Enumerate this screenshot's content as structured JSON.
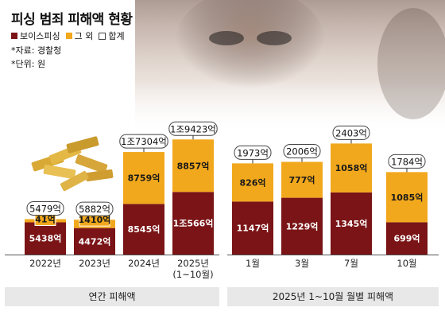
{
  "title": "피싱 범죄 피해액 현황",
  "legend": [
    {
      "label": "보이스피싱",
      "color": "#7a1416"
    },
    {
      "label": "그 외",
      "color": "#f2a81c"
    },
    {
      "label": "합계",
      "color": "#ffffff"
    }
  ],
  "source_note": "*자료: 경찰청",
  "unit_note": "*단위: 원",
  "chart_data": [
    {
      "type": "bar",
      "stacked": true,
      "panel_label": "연간 피해액",
      "categories": [
        "2022년",
        "2023년",
        "2024년",
        "2025년\n(1~10월)"
      ],
      "series": [
        {
          "name": "보이스피싱",
          "values": [
            5438,
            4472,
            8545,
            10566
          ],
          "labels": [
            "5438억",
            "4472억",
            "8545억",
            "1조566억"
          ]
        },
        {
          "name": "그 외",
          "values": [
            41,
            1410,
            8759,
            8857
          ],
          "labels": [
            "41억",
            "1410억",
            "8759억",
            "8857억"
          ]
        }
      ],
      "totals": {
        "name": "합계",
        "values": [
          5479,
          5882,
          17304,
          19423
        ],
        "labels": [
          "5479억",
          "5882억",
          "1조7304억",
          "1조9423억"
        ]
      }
    },
    {
      "type": "bar",
      "stacked": true,
      "panel_label": "2025년 1~10월 월별 피해액",
      "categories": [
        "1월",
        "3월",
        "7월",
        "10월"
      ],
      "series": [
        {
          "name": "보이스피싱",
          "values": [
            1147,
            1229,
            1345,
            699
          ],
          "labels": [
            "1147억",
            "1229억",
            "1345억",
            "699억"
          ]
        },
        {
          "name": "그 외",
          "values": [
            826,
            777,
            1058,
            1085
          ],
          "labels": [
            "826억",
            "777억",
            "1058억",
            "1085억"
          ]
        }
      ],
      "totals": {
        "name": "합계",
        "values": [
          1973,
          2006,
          2403,
          1784
        ],
        "labels": [
          "1973억",
          "2006억",
          "2403억",
          "1784억"
        ]
      }
    }
  ]
}
